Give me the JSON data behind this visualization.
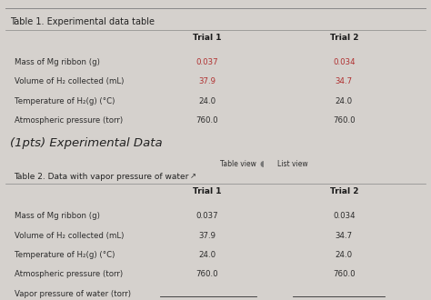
{
  "bg_color": "#d5d1cd",
  "table1_title": "Table 1. Experimental data table",
  "table2_title": "Table 2. Data with vapor pressure of water",
  "section_title": "(1pts) Experimental Data",
  "table_view_label": "Table view",
  "list_view_label": "List view",
  "col_headers": [
    "Trial 1",
    "Trial 2"
  ],
  "rows": [
    [
      "Mass of Mg ribbon (g)",
      "0.037",
      "0.034"
    ],
    [
      "Volume of H₂ collected (mL)",
      "37.9",
      "34.7"
    ],
    [
      "Temperature of H₂(g) (°C)",
      "24.0",
      "24.0"
    ],
    [
      "Atmospheric pressure (torr)",
      "760.0",
      "760.0"
    ]
  ],
  "rows2": [
    [
      "Mass of Mg ribbon (g)",
      "0.037",
      "0.034"
    ],
    [
      "Volume of H₂ collected (mL)",
      "37.9",
      "34.7"
    ],
    [
      "Temperature of H₂(g) (°C)",
      "24.0",
      "24.0"
    ],
    [
      "Atmospheric pressure (torr)",
      "760.0",
      "760.0"
    ]
  ],
  "row_blank": [
    "Vapor pressure of water (torr)",
    "",
    ""
  ],
  "red_color": "#b03030",
  "normal_color": "#2c2c2c",
  "header_color": "#1a1a1a",
  "title_color": "#222222",
  "line_color": "#888888"
}
